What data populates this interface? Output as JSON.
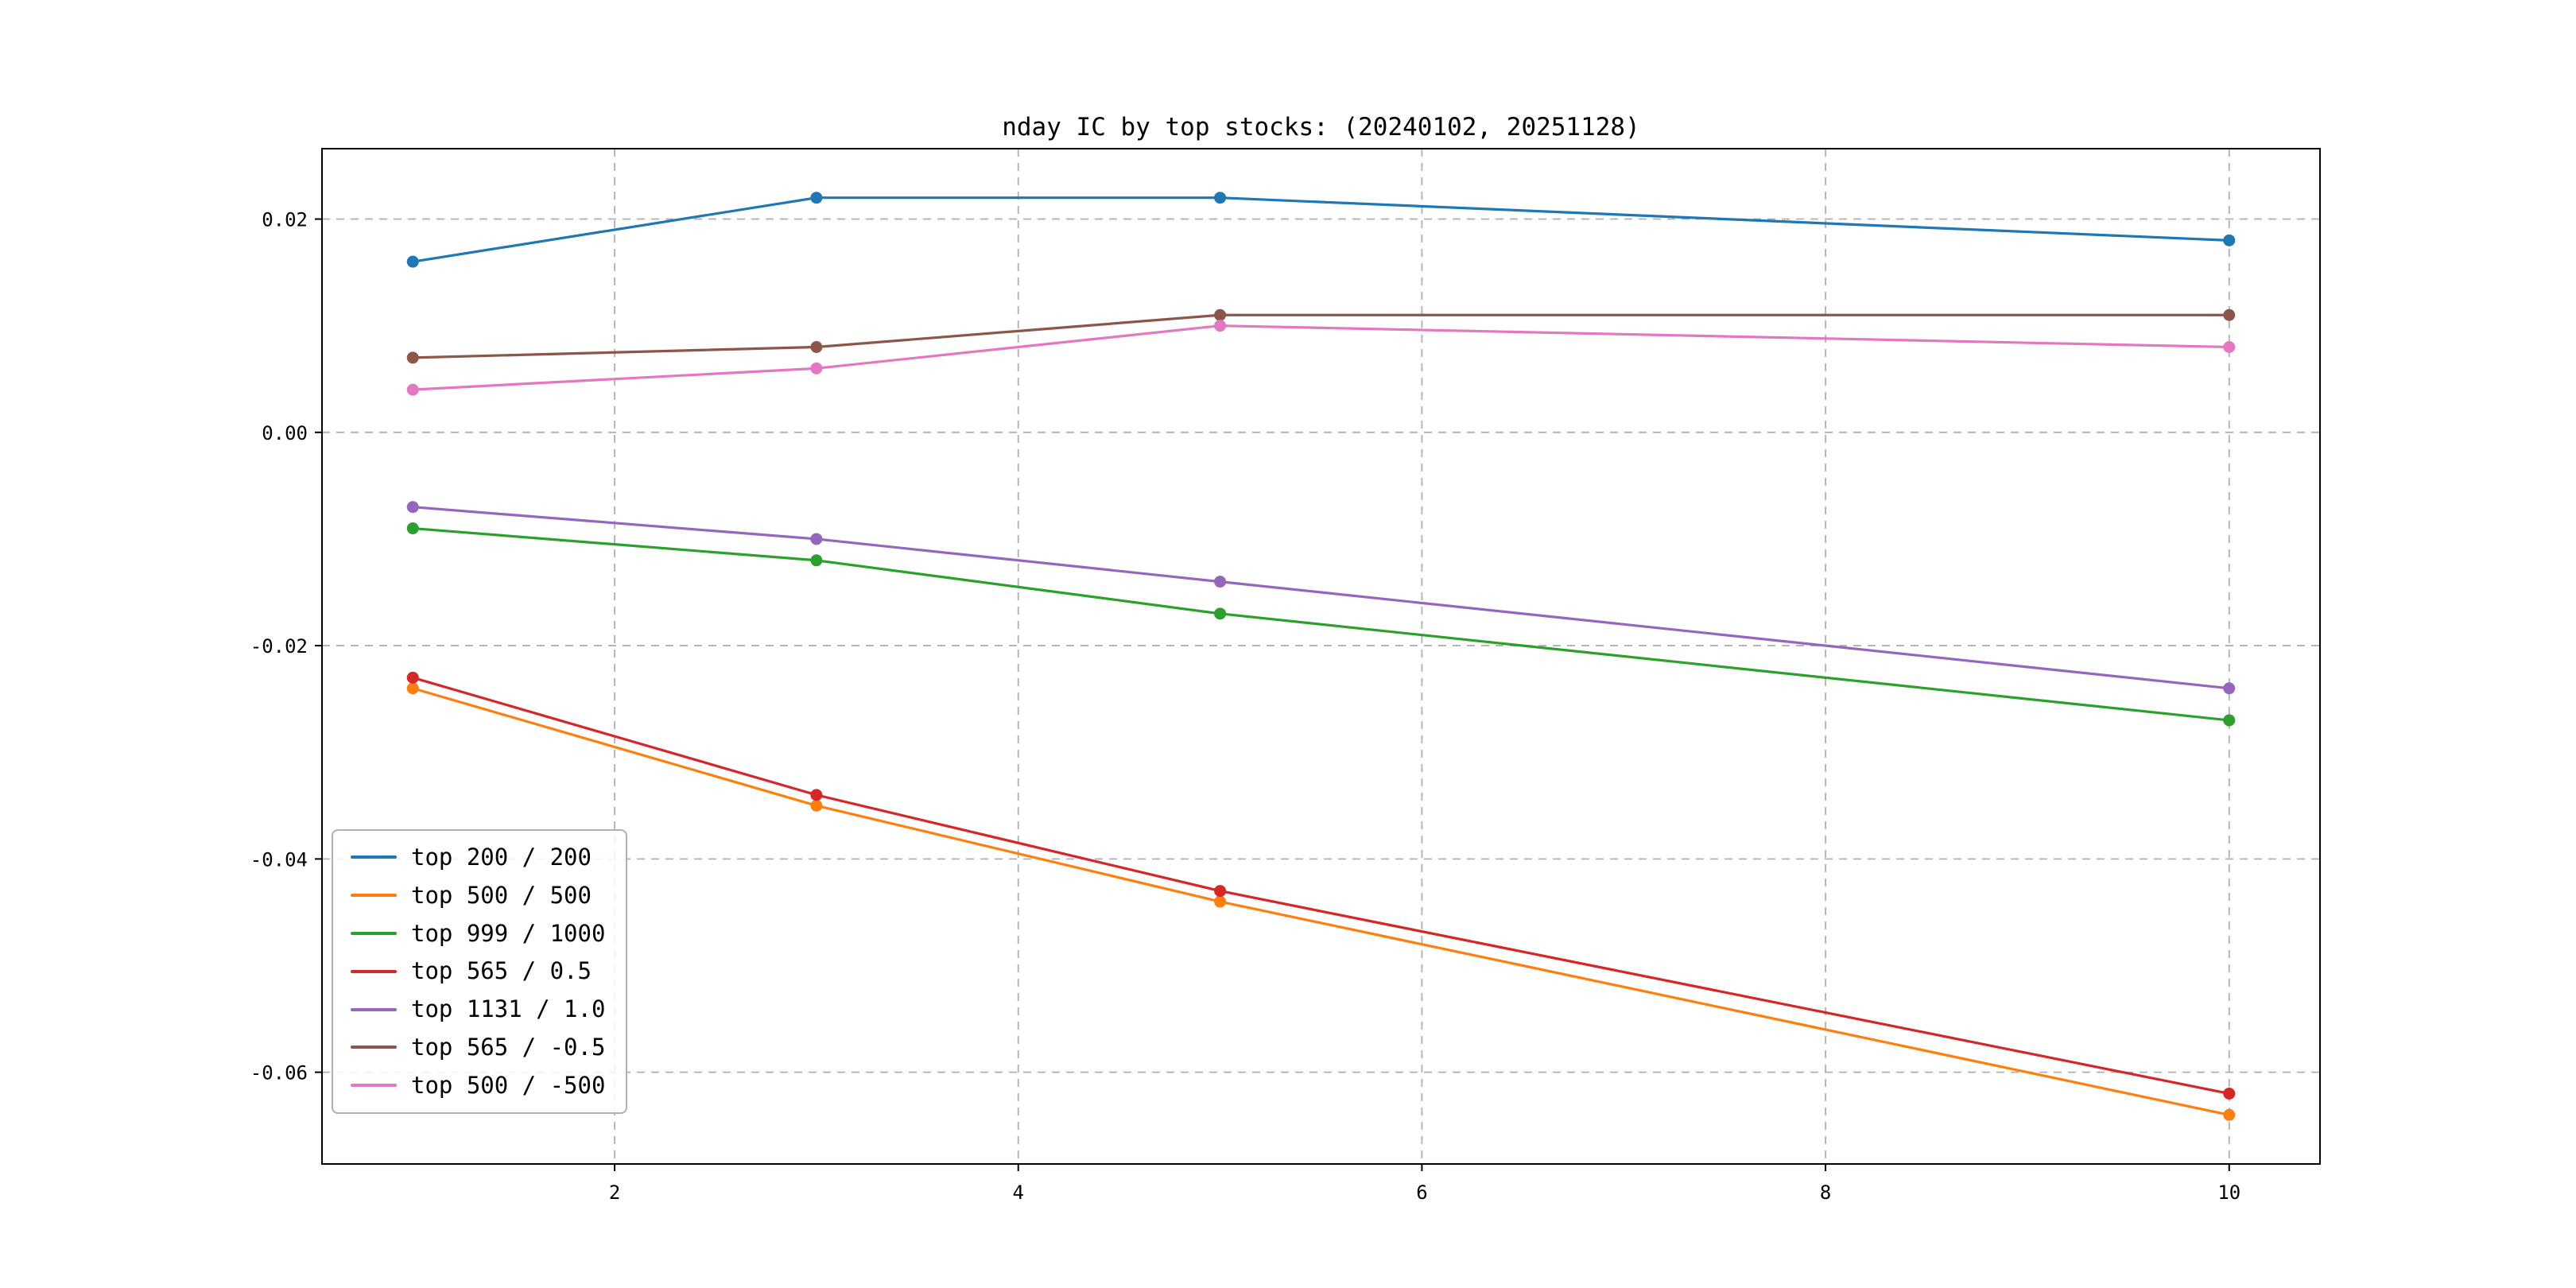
{
  "title": "nday IC by top stocks: (20240102, 20251128)",
  "chart_data": {
    "type": "line",
    "title": "nday IC by top stocks: (20240102, 20251128)",
    "xlabel": "",
    "ylabel": "",
    "x": [
      1,
      3,
      5,
      10
    ],
    "series": [
      {
        "name": "top 200 / 200",
        "color": "#1f77b4",
        "values": [
          0.016,
          0.022,
          0.022,
          0.018
        ]
      },
      {
        "name": "top 500 / 500",
        "color": "#ff7f0e",
        "values": [
          -0.024,
          -0.035,
          -0.044,
          -0.064
        ]
      },
      {
        "name": "top 999 / 1000",
        "color": "#2ca02c",
        "values": [
          -0.009,
          -0.012,
          -0.017,
          -0.027
        ]
      },
      {
        "name": "top 565 / 0.5",
        "color": "#d62728",
        "values": [
          -0.023,
          -0.034,
          -0.043,
          -0.062
        ]
      },
      {
        "name": "top 1131 / 1.0",
        "color": "#9467bd",
        "values": [
          -0.007,
          -0.01,
          -0.014,
          -0.024
        ]
      },
      {
        "name": "top 565 / -0.5",
        "color": "#8c564b",
        "values": [
          0.007,
          0.008,
          0.011,
          0.011
        ]
      },
      {
        "name": "top 500 / -500",
        "color": "#e377c2",
        "values": [
          0.004,
          0.006,
          0.01,
          0.008
        ]
      }
    ],
    "xticks": [
      2,
      4,
      6,
      8,
      10
    ],
    "xtick_labels": [
      "2",
      "4",
      "6",
      "8",
      "10"
    ],
    "yticks": [
      0.02,
      0.0,
      -0.02,
      -0.04,
      -0.06
    ],
    "ytick_labels": [
      "0.02",
      "0.00",
      "-0.02",
      "-0.04",
      "-0.06"
    ],
    "xlim": [
      0.55,
      10.45
    ],
    "ylim": [
      -0.0686,
      0.0266
    ],
    "grid": true,
    "grid_style": "dashed",
    "grid_color": "#b0b0b0",
    "legend_position": "lower-left",
    "marker": "circle"
  }
}
